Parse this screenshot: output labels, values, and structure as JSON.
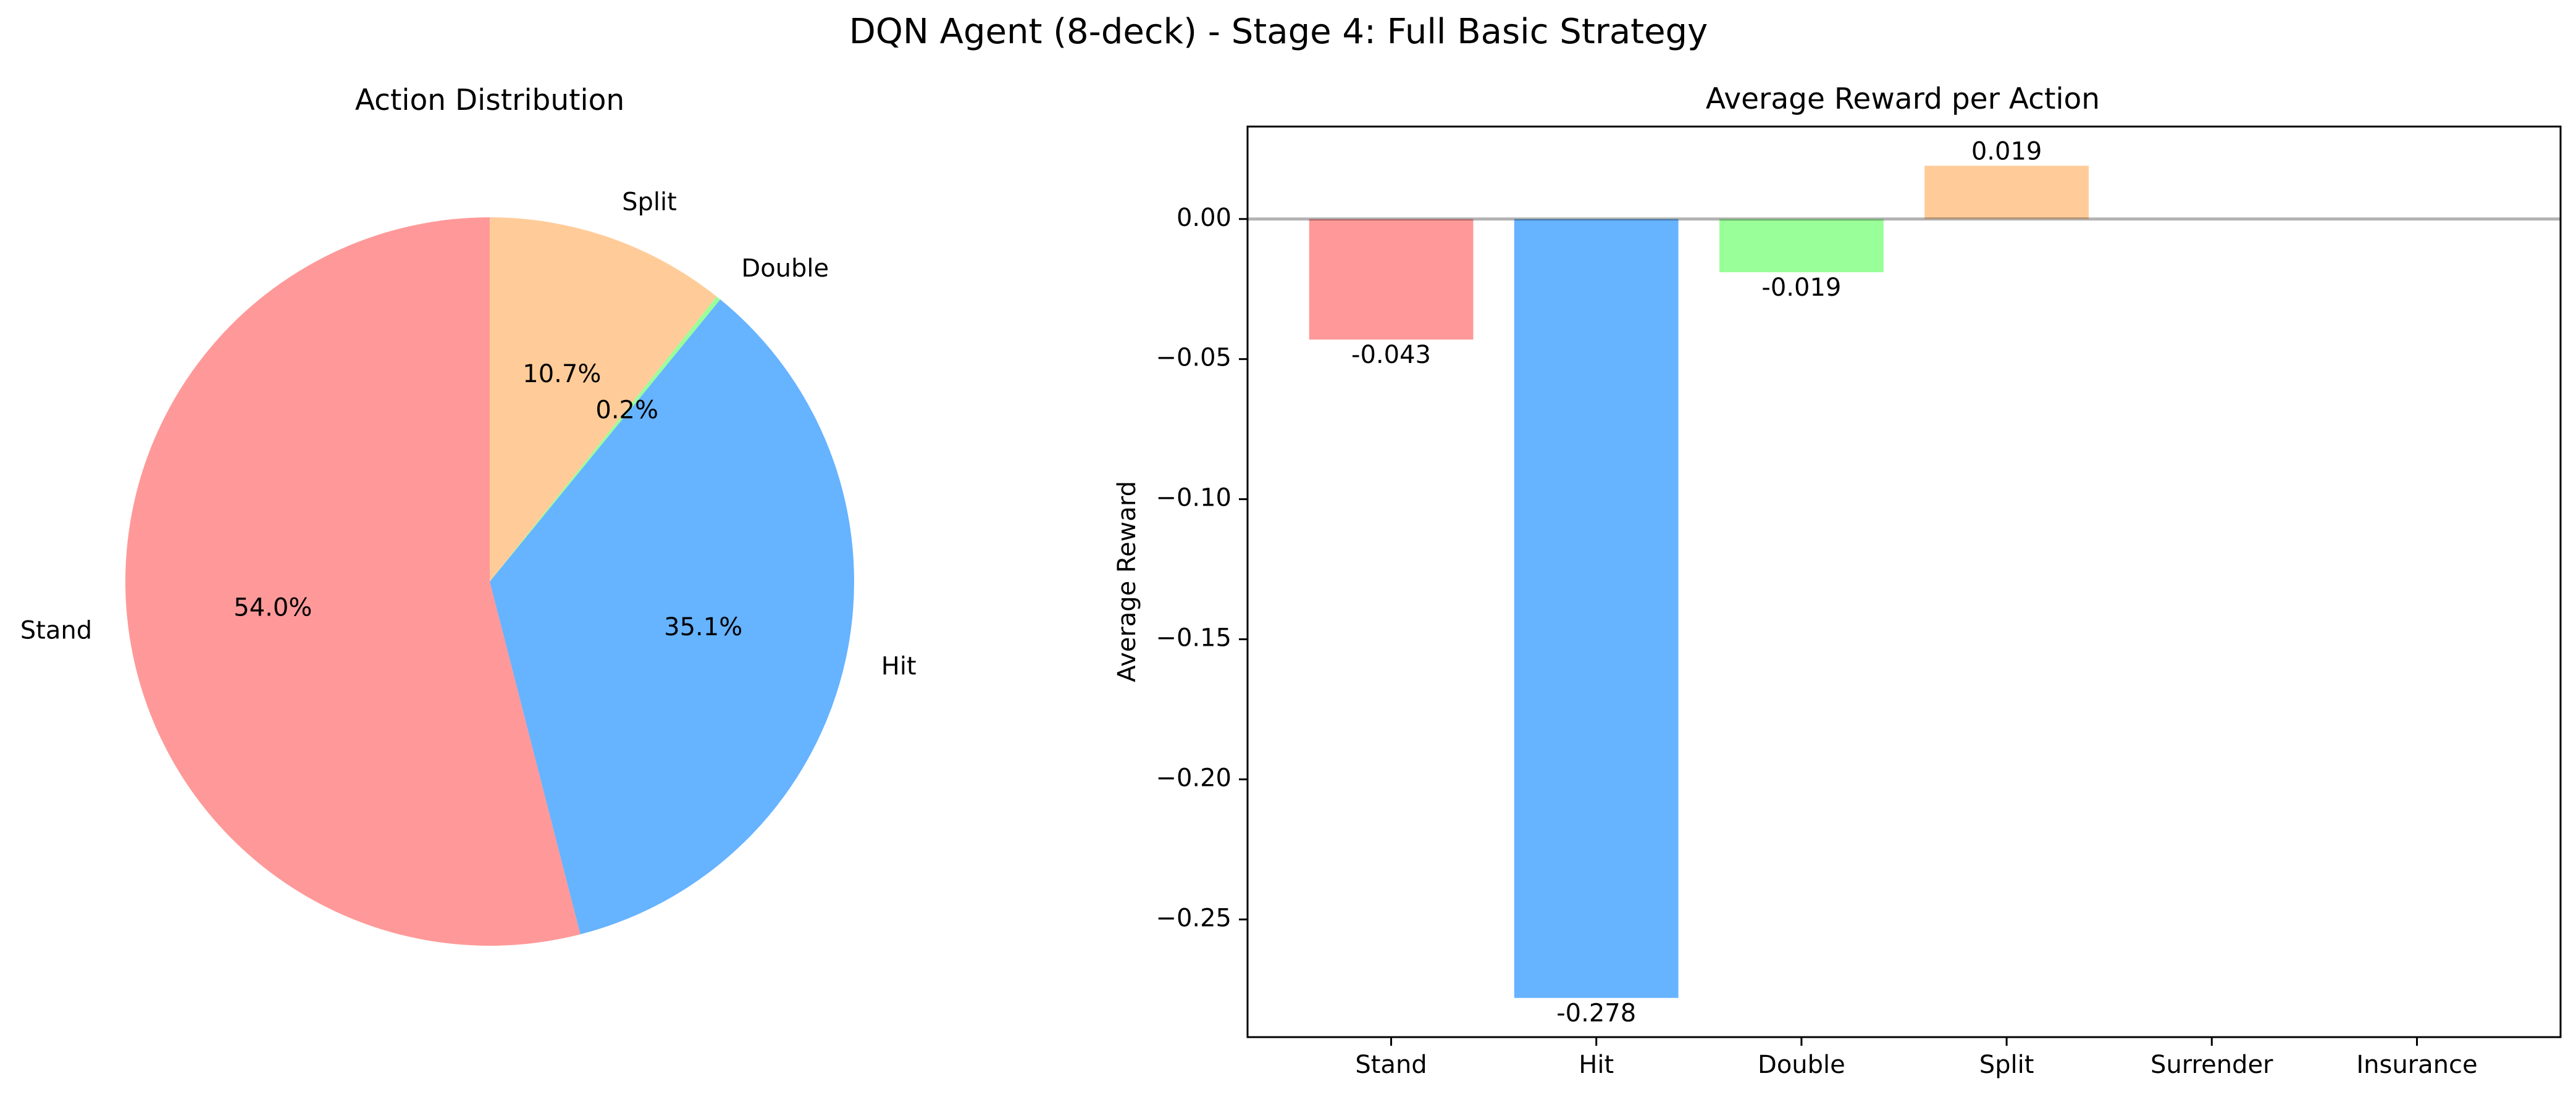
{
  "figure": {
    "suptitle": "DQN Agent (8-deck) - Stage 4: Full Basic Strategy"
  },
  "chart_data": [
    {
      "type": "pie",
      "title": "Action Distribution",
      "start_angle_deg": 90,
      "direction": "counterclockwise",
      "slices": [
        {
          "label": "Stand",
          "value": 54.0,
          "pct_label": "54.0%",
          "color": "#ff9999"
        },
        {
          "label": "Hit",
          "value": 35.1,
          "pct_label": "35.1%",
          "color": "#66b3ff"
        },
        {
          "label": "Double",
          "value": 0.2,
          "pct_label": "0.2%",
          "color": "#99ff99"
        },
        {
          "label": "Split",
          "value": 10.7,
          "pct_label": "10.7%",
          "color": "#ffcc99"
        }
      ]
    },
    {
      "type": "bar",
      "title": "Average Reward per Action",
      "xlabel": "",
      "ylabel": "Average Reward",
      "categories": [
        "Stand",
        "Hit",
        "Double",
        "Split",
        "Surrender",
        "Insurance"
      ],
      "values": [
        -0.043,
        -0.278,
        -0.019,
        0.019,
        null,
        null
      ],
      "value_labels": [
        "-0.043",
        "-0.278",
        "-0.019",
        "0.019",
        "",
        ""
      ],
      "colors": [
        "#ff9999",
        "#66b3ff",
        "#99ff99",
        "#ffcc99",
        "#ff99cc",
        "#ffb3e6"
      ],
      "ylim": [
        -0.292,
        0.033
      ],
      "yticks": [
        0.0,
        -0.05,
        -0.1,
        -0.15,
        -0.2,
        -0.25
      ],
      "ytick_labels": [
        "0.00",
        "−0.05",
        "−0.10",
        "−0.15",
        "−0.20",
        "−0.25"
      ],
      "zero_line": true,
      "grid": false
    }
  ]
}
